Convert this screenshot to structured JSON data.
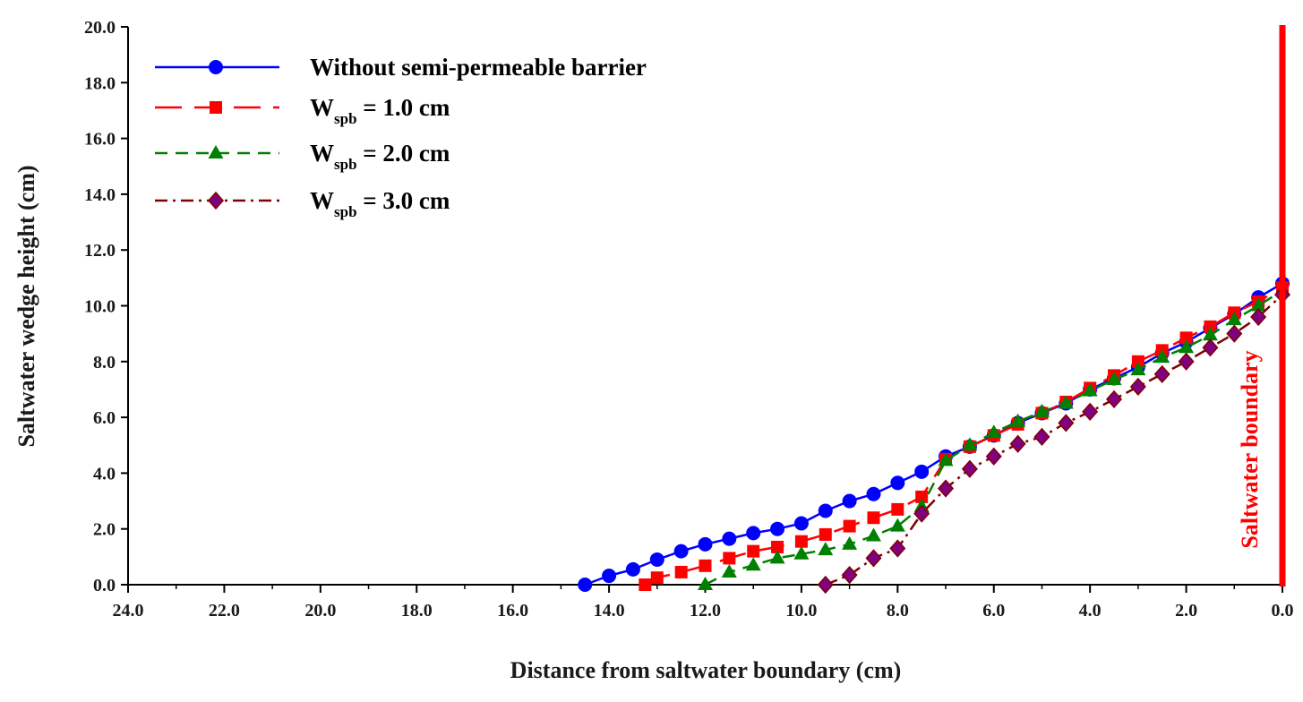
{
  "chart_data": {
    "type": "line",
    "xlabel": "Distance from saltwater boundary (cm)",
    "ylabel": "Saltwater wedge height (cm)",
    "xlim": [
      24.0,
      0.0
    ],
    "ylim": [
      0.0,
      20.0
    ],
    "x_reversed": true,
    "xticks": [
      "24.0",
      "22.0",
      "20.0",
      "18.0",
      "16.0",
      "14.0",
      "12.0",
      "10.0",
      "8.0",
      "6.0",
      "4.0",
      "2.0",
      "0.0"
    ],
    "yticks": [
      "0.0",
      "2.0",
      "4.0",
      "6.0",
      "8.0",
      "10.0",
      "12.0",
      "14.0",
      "16.0",
      "18.0",
      "20.0"
    ],
    "grid": false,
    "legend_position": "top-left",
    "annotation": {
      "text": "Saltwater boundary",
      "x": 0.0,
      "color": "#ff0000"
    },
    "series": [
      {
        "name": "Without semi-permeable barrier",
        "legend_main": "Without semi-permeable barrier",
        "legend_sub": "",
        "legend_tail": "",
        "color": "#0000ff",
        "marker": "circle",
        "line_style": "solid",
        "x": [
          14.5,
          14.0,
          13.5,
          13.0,
          12.5,
          12.0,
          11.5,
          11.0,
          10.5,
          10.0,
          9.5,
          9.0,
          8.5,
          8.0,
          7.5,
          7.0,
          6.5,
          6.0,
          5.5,
          5.0,
          4.5,
          4.0,
          3.5,
          3.0,
          2.5,
          2.0,
          1.5,
          1.0,
          0.5,
          0.0
        ],
        "y": [
          0.0,
          0.32,
          0.55,
          0.9,
          1.2,
          1.45,
          1.65,
          1.85,
          2.0,
          2.2,
          2.65,
          3.0,
          3.25,
          3.65,
          4.05,
          4.6,
          4.95,
          5.35,
          5.8,
          6.15,
          6.5,
          7.0,
          7.4,
          7.8,
          8.3,
          8.7,
          9.2,
          9.7,
          10.3,
          10.8
        ]
      },
      {
        "name": "Wspb = 1.0 cm",
        "legend_main": "W",
        "legend_sub": "spb",
        "legend_tail": " = 1.0 cm",
        "color": "#ff0000",
        "marker": "square",
        "line_style": "long-dash",
        "x": [
          13.25,
          13.0,
          12.5,
          12.0,
          11.5,
          11.0,
          10.5,
          10.0,
          9.5,
          9.0,
          8.5,
          8.0,
          7.5,
          7.0,
          6.5,
          6.0,
          5.5,
          5.0,
          4.5,
          4.0,
          3.5,
          3.0,
          2.5,
          2.0,
          1.5,
          1.0,
          0.5,
          0.0
        ],
        "y": [
          0.0,
          0.25,
          0.45,
          0.68,
          0.95,
          1.2,
          1.35,
          1.55,
          1.8,
          2.1,
          2.4,
          2.7,
          3.15,
          4.5,
          4.95,
          5.35,
          5.75,
          6.15,
          6.55,
          7.05,
          7.5,
          8.0,
          8.4,
          8.85,
          9.25,
          9.75,
          10.15,
          10.65
        ]
      },
      {
        "name": "Wspb = 2.0 cm",
        "legend_main": "W",
        "legend_sub": "spb",
        "legend_tail": " = 2.0 cm",
        "color": "#008000",
        "marker": "triangle",
        "line_style": "short-dash",
        "x": [
          12.0,
          11.5,
          11.0,
          10.5,
          10.0,
          9.5,
          9.0,
          8.5,
          8.0,
          7.5,
          7.0,
          6.5,
          6.0,
          5.5,
          5.0,
          4.5,
          4.0,
          3.5,
          3.0,
          2.5,
          2.0,
          1.5,
          1.0,
          0.5,
          0.0
        ],
        "y": [
          0.0,
          0.45,
          0.7,
          0.95,
          1.1,
          1.25,
          1.45,
          1.75,
          2.1,
          2.8,
          4.45,
          5.0,
          5.45,
          5.85,
          6.2,
          6.5,
          6.95,
          7.35,
          7.7,
          8.15,
          8.5,
          8.95,
          9.5,
          10.0,
          10.55
        ]
      },
      {
        "name": "Wspb = 3.0 cm",
        "legend_main": "W",
        "legend_sub": "spb",
        "legend_tail": " = 3.0 cm",
        "color": "#800000",
        "marker": "diamond",
        "marker_fill": "#800080",
        "line_style": "dash-dot",
        "x": [
          9.5,
          9.0,
          8.5,
          8.0,
          7.5,
          7.0,
          6.5,
          6.0,
          5.5,
          5.0,
          4.5,
          4.0,
          3.5,
          3.0,
          2.5,
          2.0,
          1.5,
          1.0,
          0.5,
          0.0
        ],
        "y": [
          0.0,
          0.35,
          0.95,
          1.3,
          2.55,
          3.45,
          4.15,
          4.6,
          5.05,
          5.3,
          5.8,
          6.2,
          6.65,
          7.1,
          7.55,
          8.0,
          8.5,
          9.0,
          9.6,
          10.4
        ]
      }
    ]
  }
}
